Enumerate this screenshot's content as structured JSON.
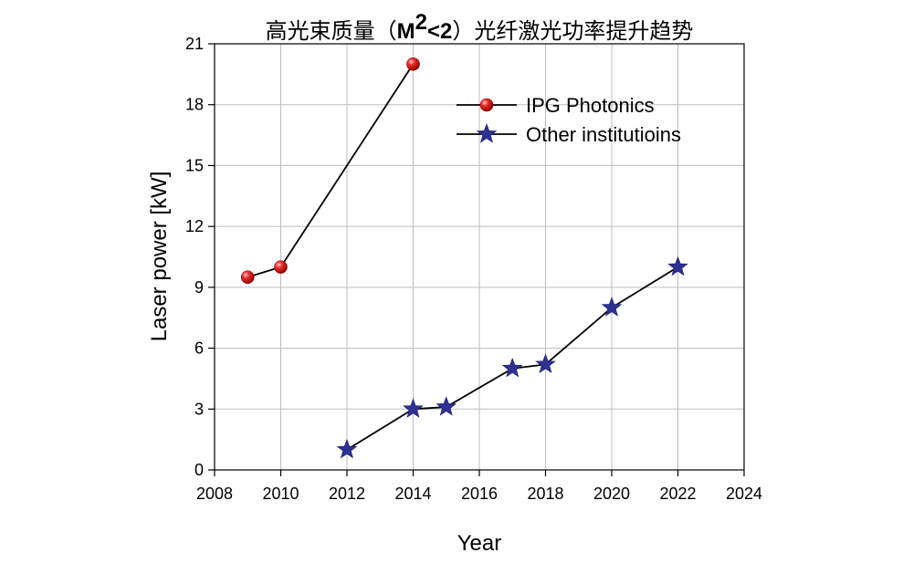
{
  "chart_data": {
    "type": "line",
    "title": {
      "zh_prefix": "高光束质量（",
      "m": "M",
      "sup": "2",
      "cond": "<2",
      "zh_suffix": "）光纤激光功率提升趋势"
    },
    "xlabel": "Year",
    "ylabel": "Laser power [kW]",
    "xlim": [
      2008,
      2024
    ],
    "ylim": [
      0,
      21
    ],
    "xticks": [
      2008,
      2010,
      2012,
      2014,
      2016,
      2018,
      2020,
      2022,
      2024
    ],
    "yticks": [
      0,
      3,
      6,
      9,
      12,
      15,
      18,
      21
    ],
    "grid": true,
    "legend_position": "top-right",
    "series": [
      {
        "name": "IPG Photonics",
        "marker": "sphere",
        "color": "#e02020",
        "x": [
          2009,
          2010,
          2014
        ],
        "y": [
          9.5,
          10,
          20
        ]
      },
      {
        "name": "Other institutioins",
        "marker": "star",
        "color": "#2e3192",
        "x": [
          2012,
          2014,
          2015,
          2017,
          2018,
          2020,
          2022
        ],
        "y": [
          1,
          3,
          3.1,
          5,
          5.2,
          8,
          10
        ]
      }
    ]
  }
}
